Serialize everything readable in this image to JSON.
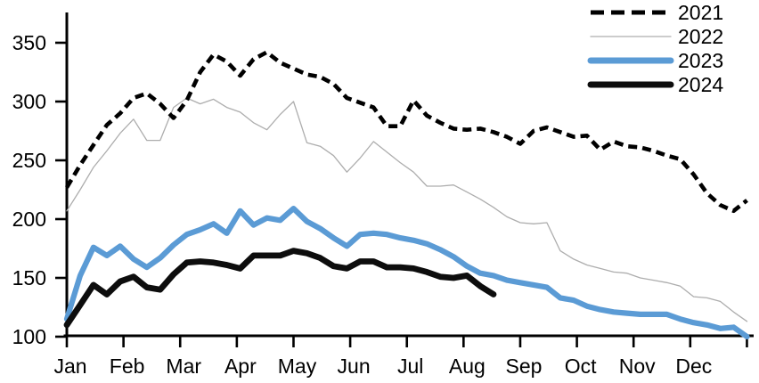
{
  "chart_data": {
    "type": "line",
    "title": "",
    "x_frequency": "weekly",
    "x_axis": {
      "tick_labels": [
        "Jan",
        "Feb",
        "Mar",
        "Apr",
        "May",
        "Jun",
        "Jul",
        "Aug",
        "Sep",
        "Oct",
        "Nov",
        "Dec"
      ]
    },
    "y_axis": {
      "ticks": [
        100,
        150,
        200,
        250,
        300,
        350
      ],
      "range": [
        100,
        355
      ],
      "grid": false
    },
    "legend": {
      "position": "top-right",
      "entries": [
        "2021",
        "2022",
        "2023",
        "2024"
      ]
    },
    "series": [
      {
        "name": "2021",
        "color": "#000000",
        "style": "dashed",
        "width": 4.6,
        "values": [
          227,
          246,
          263,
          280,
          290,
          303,
          307,
          298,
          286,
          301,
          325,
          340,
          334,
          322,
          336,
          342,
          333,
          328,
          323,
          321,
          315,
          303,
          299,
          295,
          279,
          279,
          301,
          288,
          282,
          277,
          276,
          277,
          274,
          270,
          264,
          275,
          278,
          274,
          270,
          271,
          259,
          266,
          262,
          261,
          258,
          254,
          251,
          238,
          222,
          212,
          207,
          216
        ]
      },
      {
        "name": "2022",
        "color": "#ADADAD",
        "style": "solid",
        "width": 1.3,
        "values": [
          207,
          225,
          244,
          258,
          273,
          285,
          267,
          267,
          295,
          303,
          298,
          302,
          295,
          291,
          282,
          276,
          289,
          300,
          265,
          262,
          254,
          240,
          252,
          266,
          257,
          248,
          240,
          228,
          228,
          229,
          223,
          217,
          210,
          202,
          197,
          196,
          197,
          173,
          166,
          161,
          158,
          155,
          154,
          150,
          148,
          146,
          143,
          134,
          133,
          130,
          121,
          113
        ]
      },
      {
        "name": "2023",
        "color": "#5B9BD5",
        "style": "solid",
        "width": 6.2,
        "values": [
          115,
          152,
          176,
          169,
          177,
          166,
          159,
          167,
          178,
          187,
          191,
          196,
          188,
          207,
          195,
          201,
          199,
          209,
          198,
          192,
          184,
          177,
          187,
          188,
          187,
          184,
          182,
          179,
          174,
          168,
          160,
          154,
          152,
          148,
          146,
          144,
          142,
          133,
          131,
          126,
          123,
          121,
          120,
          119,
          119,
          119,
          115,
          112,
          110,
          107,
          108,
          100
        ]
      },
      {
        "name": "2024",
        "color": "#0d0d0d",
        "style": "solid",
        "width": 6.8,
        "values": [
          110,
          127,
          144,
          136,
          147,
          151,
          142,
          140,
          153,
          163,
          164,
          163,
          161,
          158,
          169,
          169,
          169,
          173,
          171,
          167,
          160,
          158,
          164,
          164,
          159,
          159,
          158,
          155,
          151,
          150,
          152,
          143,
          136
        ]
      }
    ]
  }
}
